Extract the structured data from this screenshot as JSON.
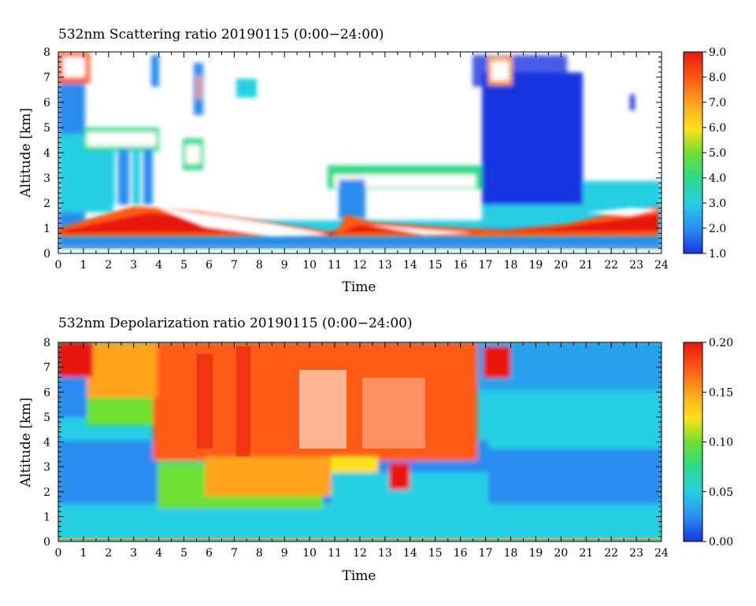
{
  "chart_data": [
    {
      "type": "heatmap",
      "title": "532nm Scattering ratio  20190115 (0:00−24:00)",
      "xlabel": "Time",
      "ylabel": "Altitude [km]",
      "xlim": [
        0,
        24
      ],
      "ylim": [
        0,
        8
      ],
      "x_ticks": [
        "0",
        "1",
        "2",
        "3",
        "4",
        "5",
        "6",
        "7",
        "8",
        "9",
        "10",
        "11",
        "12",
        "13",
        "14",
        "15",
        "16",
        "17",
        "18",
        "19",
        "20",
        "21",
        "22",
        "23",
        "24"
      ],
      "y_ticks": [
        "0",
        "1",
        "2",
        "3",
        "4",
        "5",
        "6",
        "7",
        "8"
      ],
      "colorbar": {
        "range": [
          1.0,
          9.0
        ],
        "ticks": [
          "1.0",
          "2.0",
          "3.0",
          "4.0",
          "5.0",
          "6.0",
          "7.0",
          "8.0",
          "9.0"
        ],
        "colors": [
          "#1535e0",
          "#2a8cf0",
          "#26cfe4",
          "#2ad98a",
          "#6de033",
          "#ffe21a",
          "#ffa21a",
          "#ff5a14",
          "#e8180f"
        ]
      },
      "features": [
        {
          "x": [
            0,
            24
          ],
          "y": [
            0.3,
            1.5
          ],
          "value": 8.5
        },
        {
          "x": [
            1.2,
            3.7
          ],
          "y": [
            4.2,
            4.8
          ],
          "value": 5.0
        },
        {
          "x": [
            11.0,
            11.5
          ],
          "y": [
            1.5,
            3.0
          ],
          "value": 2.0
        },
        {
          "x": [
            16.8,
            20.8
          ],
          "y": [
            2.0,
            8.0
          ],
          "value": 1.8
        }
      ]
    },
    {
      "type": "heatmap",
      "title": "532nm Depolarization ratio  20190115 (0:00−24:00)",
      "xlabel": "Time",
      "ylabel": "Altitude [km]",
      "xlim": [
        0,
        24
      ],
      "ylim": [
        0,
        8
      ],
      "x_ticks": [
        "0",
        "1",
        "2",
        "3",
        "4",
        "5",
        "6",
        "7",
        "8",
        "9",
        "10",
        "11",
        "12",
        "13",
        "14",
        "15",
        "16",
        "17",
        "18",
        "19",
        "20",
        "21",
        "22",
        "23",
        "24"
      ],
      "y_ticks": [
        "0",
        "1",
        "2",
        "3",
        "4",
        "5",
        "6",
        "7",
        "8"
      ],
      "colorbar": {
        "range": [
          0.0,
          0.2
        ],
        "ticks": [
          "0.00",
          "0.05",
          "0.10",
          "0.15",
          "0.20"
        ],
        "colors": [
          "#1535e0",
          "#2a8cf0",
          "#26cfe4",
          "#2ad98a",
          "#6de033",
          "#ffe21a",
          "#ffa21a",
          "#ff5a14",
          "#e8180f"
        ]
      },
      "features": [
        {
          "x": [
            3.7,
            16.6
          ],
          "y": [
            3.0,
            8.0
          ],
          "value": 0.18
        },
        {
          "x": [
            0.3,
            1.3
          ],
          "y": [
            6.8,
            8.0
          ],
          "value": 0.19
        },
        {
          "x": [
            13.2,
            14.0
          ],
          "y": [
            2.0,
            2.9
          ],
          "value": 0.18
        },
        {
          "x": [
            17.0,
            18.0
          ],
          "y": [
            6.4,
            7.6
          ],
          "value": 0.18
        },
        {
          "x": [
            1.2,
            3.8
          ],
          "y": [
            4.0,
            6.0
          ],
          "value": 0.09
        }
      ]
    }
  ]
}
